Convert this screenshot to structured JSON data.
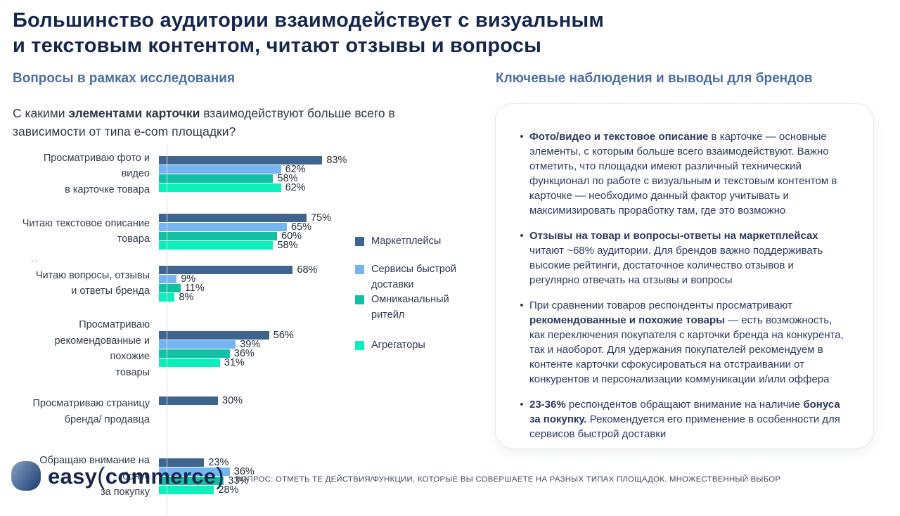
{
  "slide": {
    "title": "Большинство аудитории взаимодействует с визуальным\nи текстовым контентом, читают отзывы и вопросы",
    "left_section_title": "Вопросы в рамках исследования",
    "right_section_title": "Ключевые наблюдения и выводы для брендов",
    "question_segments": [
      {
        "t": "С какими "
      },
      {
        "b": 1,
        "t": "элементами карточки"
      },
      {
        "t": " взаимодействуют больше всего в зависимости от типа e-com площадки?"
      }
    ],
    "artifact": "..",
    "footnote": "ВОПРОС: ОТМЕТЬ ТЕ ДЕЙСТВИЯ/ФУНКЦИИ, КОТОРЫЕ ВЫ СОВЕРШАЕТЕ НА РАЗНЫХ ТИПАХ ПЛОЩАДОК. МНОЖЕСТВЕННЫЙ ВЫБОР"
  },
  "logo": {
    "part1": "easy",
    "paren_open": "(",
    "part2": "commerce",
    "paren_close": ")"
  },
  "chart_data": {
    "type": "bar",
    "orientation": "horizontal",
    "unit": "%",
    "xlim": [
      0,
      100
    ],
    "categories": [
      "Просматриваю фото и видео\nв карточке товара",
      "Читаю текстовое описание\nтовара",
      "Читаю вопросы, отзывы\nи ответы бренда",
      "Просматриваю\nрекомендованные и похожие\nтовары",
      "Просматриваю страницу\nбренда/ продавца",
      "Обращаю внимание  на бонус\nза покупку"
    ],
    "series": [
      {
        "name": "Маркетплейсы",
        "color": "#3f658e",
        "values": [
          83,
          75,
          68,
          56,
          30,
          23
        ]
      },
      {
        "name": "Сервисы быстрой доставки",
        "color": "#74b4f0",
        "values": [
          62,
          65,
          9,
          39,
          null,
          36
        ]
      },
      {
        "name": "Омниканальный ритейл",
        "color": "#12c1a4",
        "values": [
          58,
          60,
          11,
          36,
          null,
          33
        ]
      },
      {
        "name": "Агрегаторы",
        "color": "#0ceebc",
        "values": [
          62,
          58,
          8,
          31,
          null,
          28
        ]
      }
    ],
    "legend_position": "right"
  },
  "insights": {
    "bullets": [
      {
        "segments": [
          {
            "b": 1,
            "t": "Фото/видео и текстовое описание"
          },
          {
            "t": " в карточке — основные элементы, с которым больше всего взаимодействуют. Важно отметить, что площадки имеют различный технический функционал по работе с визуальным и текстовым контентом в карточке — необходимо данный фактор учитывать и максимизировать проработку там, где это возможно"
          }
        ]
      },
      {
        "segments": [
          {
            "b": 1,
            "t": "Отзывы на товар и вопросы-ответы на маркетплейсах"
          },
          {
            "t": " читают ~68% аудитории. Для брендов важно поддерживать высокие рейтинги, достаточное количество отзывов и регулярно отвечать на отзывы и вопросы"
          }
        ]
      },
      {
        "segments": [
          {
            "t": "При сравнении товаров респонденты просматривают "
          },
          {
            "b": 1,
            "t": "рекомендованные и похожие товары"
          },
          {
            "t": " — есть возможность, как переключения покупателя с карточки бренда на конкурента, так и наоборот. Для удержания покупателей рекомендуем в контенте карточки сфокусироваться на отстраивании от конкурентов и персонализации коммуникации и/или оффера"
          }
        ]
      },
      {
        "segments": [
          {
            "b": 1,
            "t": "23-36%"
          },
          {
            "t": " респондентов обращают внимание на наличие "
          },
          {
            "b": 1,
            "t": "бонуса за покупку."
          },
          {
            "t": " Рекомендуется его применение в особенности для сервисов быстрой доставки"
          }
        ]
      }
    ]
  }
}
